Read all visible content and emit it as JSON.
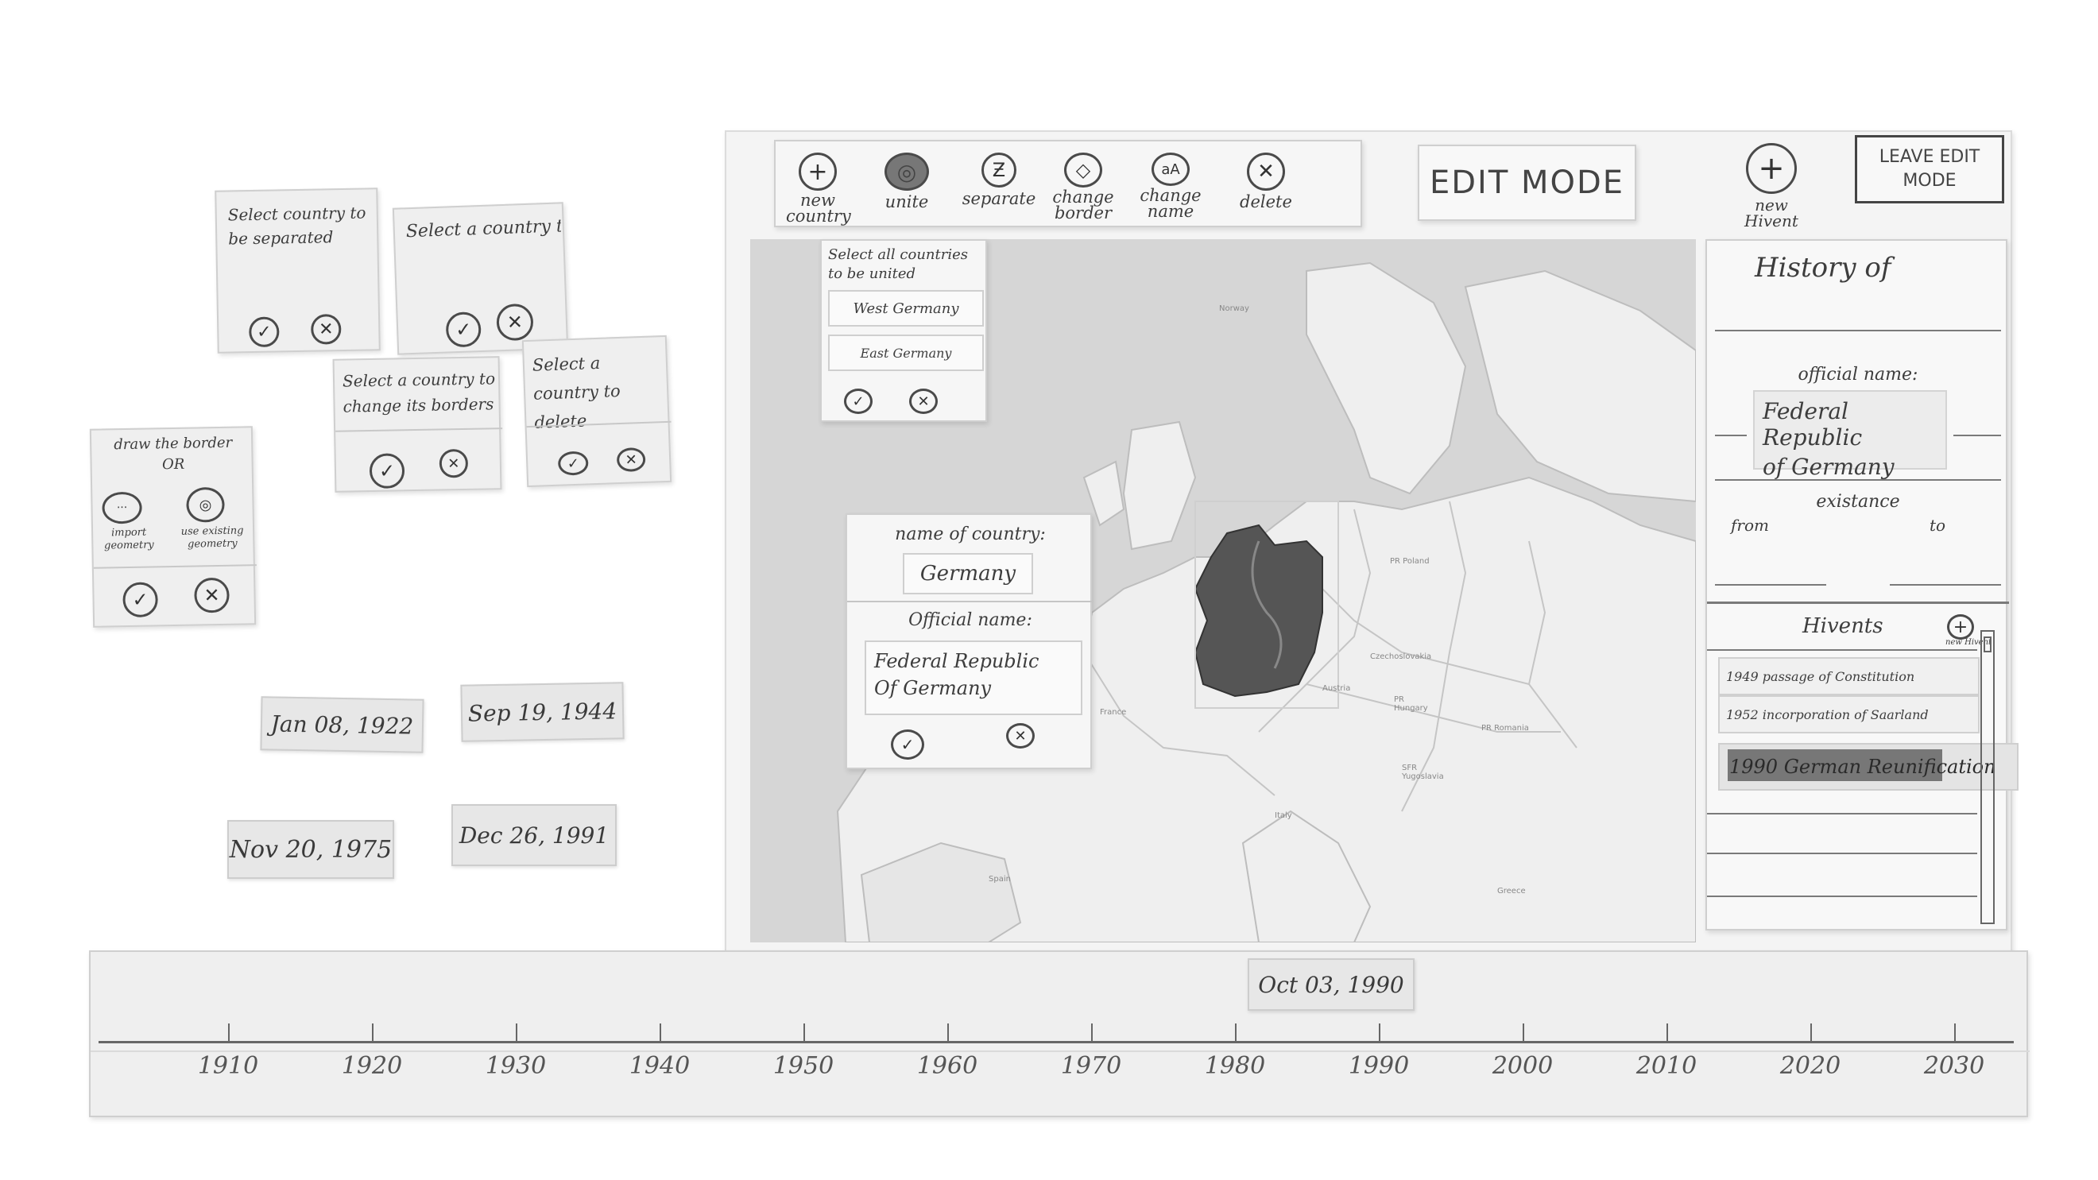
{
  "toolbar": {
    "tools": [
      {
        "label": "new country",
        "glyph": "+"
      },
      {
        "label": "unite",
        "glyph": "◎"
      },
      {
        "label": "separate",
        "glyph": "Ƶ"
      },
      {
        "label": "change border",
        "glyph": "◇"
      },
      {
        "label": "change name",
        "glyph": "aA"
      },
      {
        "label": "delete",
        "glyph": "✕"
      }
    ],
    "mode_title": "EDIT MODE",
    "new_hivent": "new Hivent",
    "leave_edit_mode": "LEAVE EDIT MODE"
  },
  "unite_popup": {
    "prompt": "Select all countries to be united",
    "items": [
      "West Germany",
      "East Germany"
    ]
  },
  "name_dialog": {
    "name_label": "name of country:",
    "name_value": "Germany",
    "official_label": "Official name:",
    "official_value_line1": "Federal Republic",
    "official_value_line2": "Of Germany"
  },
  "history_panel": {
    "title": "History of",
    "official_label": "official name:",
    "official_value_line1": "Federal Republic",
    "official_value_line2": "of Germany",
    "existance_label": "existance",
    "from_label": "from",
    "to_label": "to",
    "hivents_title": "Hivents",
    "new_hivent_small": "new Hivent",
    "hivents": [
      "1949 passage of Constitution",
      "1952 incorporation of Saarland",
      "1990 German Reunification"
    ]
  },
  "side_cards": {
    "separate": "Select country to be separated",
    "change_name": "Select a country to change its name",
    "change_border": "Select a country to change its borders",
    "delete": "Select a country to delete",
    "draw_border": "draw the border",
    "or": "OR",
    "import": "import geometry",
    "existing": "use existing geometry"
  },
  "date_cards": [
    "Jan 08, 1922",
    "Sep 19, 1944",
    "Nov 20, 1975",
    "Dec 26, 1991"
  ],
  "timeline": {
    "current_date": "Oct 03, 1990",
    "years": [
      "1910",
      "1920",
      "1930",
      "1940",
      "1950",
      "1960",
      "1970",
      "1980",
      "1990",
      "2000",
      "2010",
      "2020",
      "2030"
    ]
  },
  "map_labels": {
    "norway": "Norway",
    "poland": "PR Poland",
    "czech": "Czechoslovakia",
    "austria": "Austria",
    "hungary": "PR Hungary",
    "romania": "PR Romania",
    "yugoslavia": "SFR Yugoslavia",
    "italy": "Italy",
    "france": "France",
    "spain": "Spain",
    "greece": "Greece"
  }
}
